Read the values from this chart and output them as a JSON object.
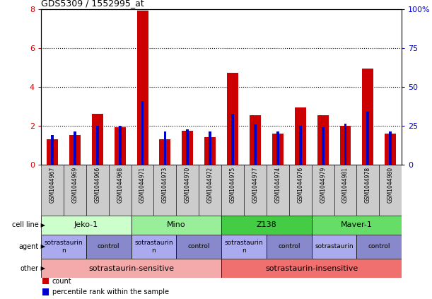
{
  "title": "GDS5309 / 1552995_at",
  "samples": [
    "GSM1044967",
    "GSM1044969",
    "GSM1044966",
    "GSM1044968",
    "GSM1044971",
    "GSM1044973",
    "GSM1044970",
    "GSM1044972",
    "GSM1044975",
    "GSM1044977",
    "GSM1044974",
    "GSM1044976",
    "GSM1044979",
    "GSM1044981",
    "GSM1044978",
    "GSM1044980"
  ],
  "counts": [
    1.3,
    1.5,
    2.6,
    1.9,
    7.9,
    1.3,
    1.75,
    1.4,
    4.7,
    2.55,
    1.6,
    2.95,
    2.55,
    2.0,
    4.95,
    1.6
  ],
  "percentiles": [
    1.5,
    1.7,
    2.0,
    2.0,
    3.25,
    1.7,
    1.8,
    1.7,
    2.6,
    2.05,
    1.7,
    2.0,
    1.9,
    2.1,
    2.7,
    1.7
  ],
  "bar_color": "#CC0000",
  "pct_color": "#0000CC",
  "ylim": [
    0,
    8
  ],
  "yticks": [
    0,
    2,
    4,
    6,
    8
  ],
  "y2ticks": [
    0,
    25,
    50,
    75,
    100
  ],
  "y2labels": [
    "0",
    "25",
    "50",
    "75",
    "100%"
  ],
  "cell_lines": [
    {
      "label": "Jeko-1",
      "start": 0,
      "end": 4,
      "color": "#ccffcc"
    },
    {
      "label": "Mino",
      "start": 4,
      "end": 8,
      "color": "#99ee99"
    },
    {
      "label": "Z138",
      "start": 8,
      "end": 12,
      "color": "#44cc44"
    },
    {
      "label": "Maver-1",
      "start": 12,
      "end": 16,
      "color": "#66dd66"
    }
  ],
  "agents": [
    {
      "label": "sotrastaurin\nn",
      "start": 0,
      "end": 2,
      "color": "#aaaaee"
    },
    {
      "label": "control",
      "start": 2,
      "end": 4,
      "color": "#8888cc"
    },
    {
      "label": "sotrastaurin\nn",
      "start": 4,
      "end": 6,
      "color": "#aaaaee"
    },
    {
      "label": "control",
      "start": 6,
      "end": 8,
      "color": "#8888cc"
    },
    {
      "label": "sotrastaurin\nn",
      "start": 8,
      "end": 10,
      "color": "#aaaaee"
    },
    {
      "label": "control",
      "start": 10,
      "end": 12,
      "color": "#8888cc"
    },
    {
      "label": "sotrastaurin",
      "start": 12,
      "end": 14,
      "color": "#aaaaee"
    },
    {
      "label": "control",
      "start": 14,
      "end": 16,
      "color": "#8888cc"
    }
  ],
  "others": [
    {
      "label": "sotrastaurin-sensitive",
      "start": 0,
      "end": 8,
      "color": "#f4aaaa"
    },
    {
      "label": "sotrastaurin-insensitive",
      "start": 8,
      "end": 16,
      "color": "#f07070"
    }
  ],
  "legend_items": [
    {
      "label": "count",
      "color": "#CC0000"
    },
    {
      "label": "percentile rank within the sample",
      "color": "#0000CC"
    }
  ],
  "bg_color": "#ffffff",
  "tick_label_color": "#CC0000",
  "y2_label_color": "#0000CC",
  "bar_width": 0.5,
  "pct_bar_width": 0.12,
  "xticklabel_bg": "#cccccc"
}
